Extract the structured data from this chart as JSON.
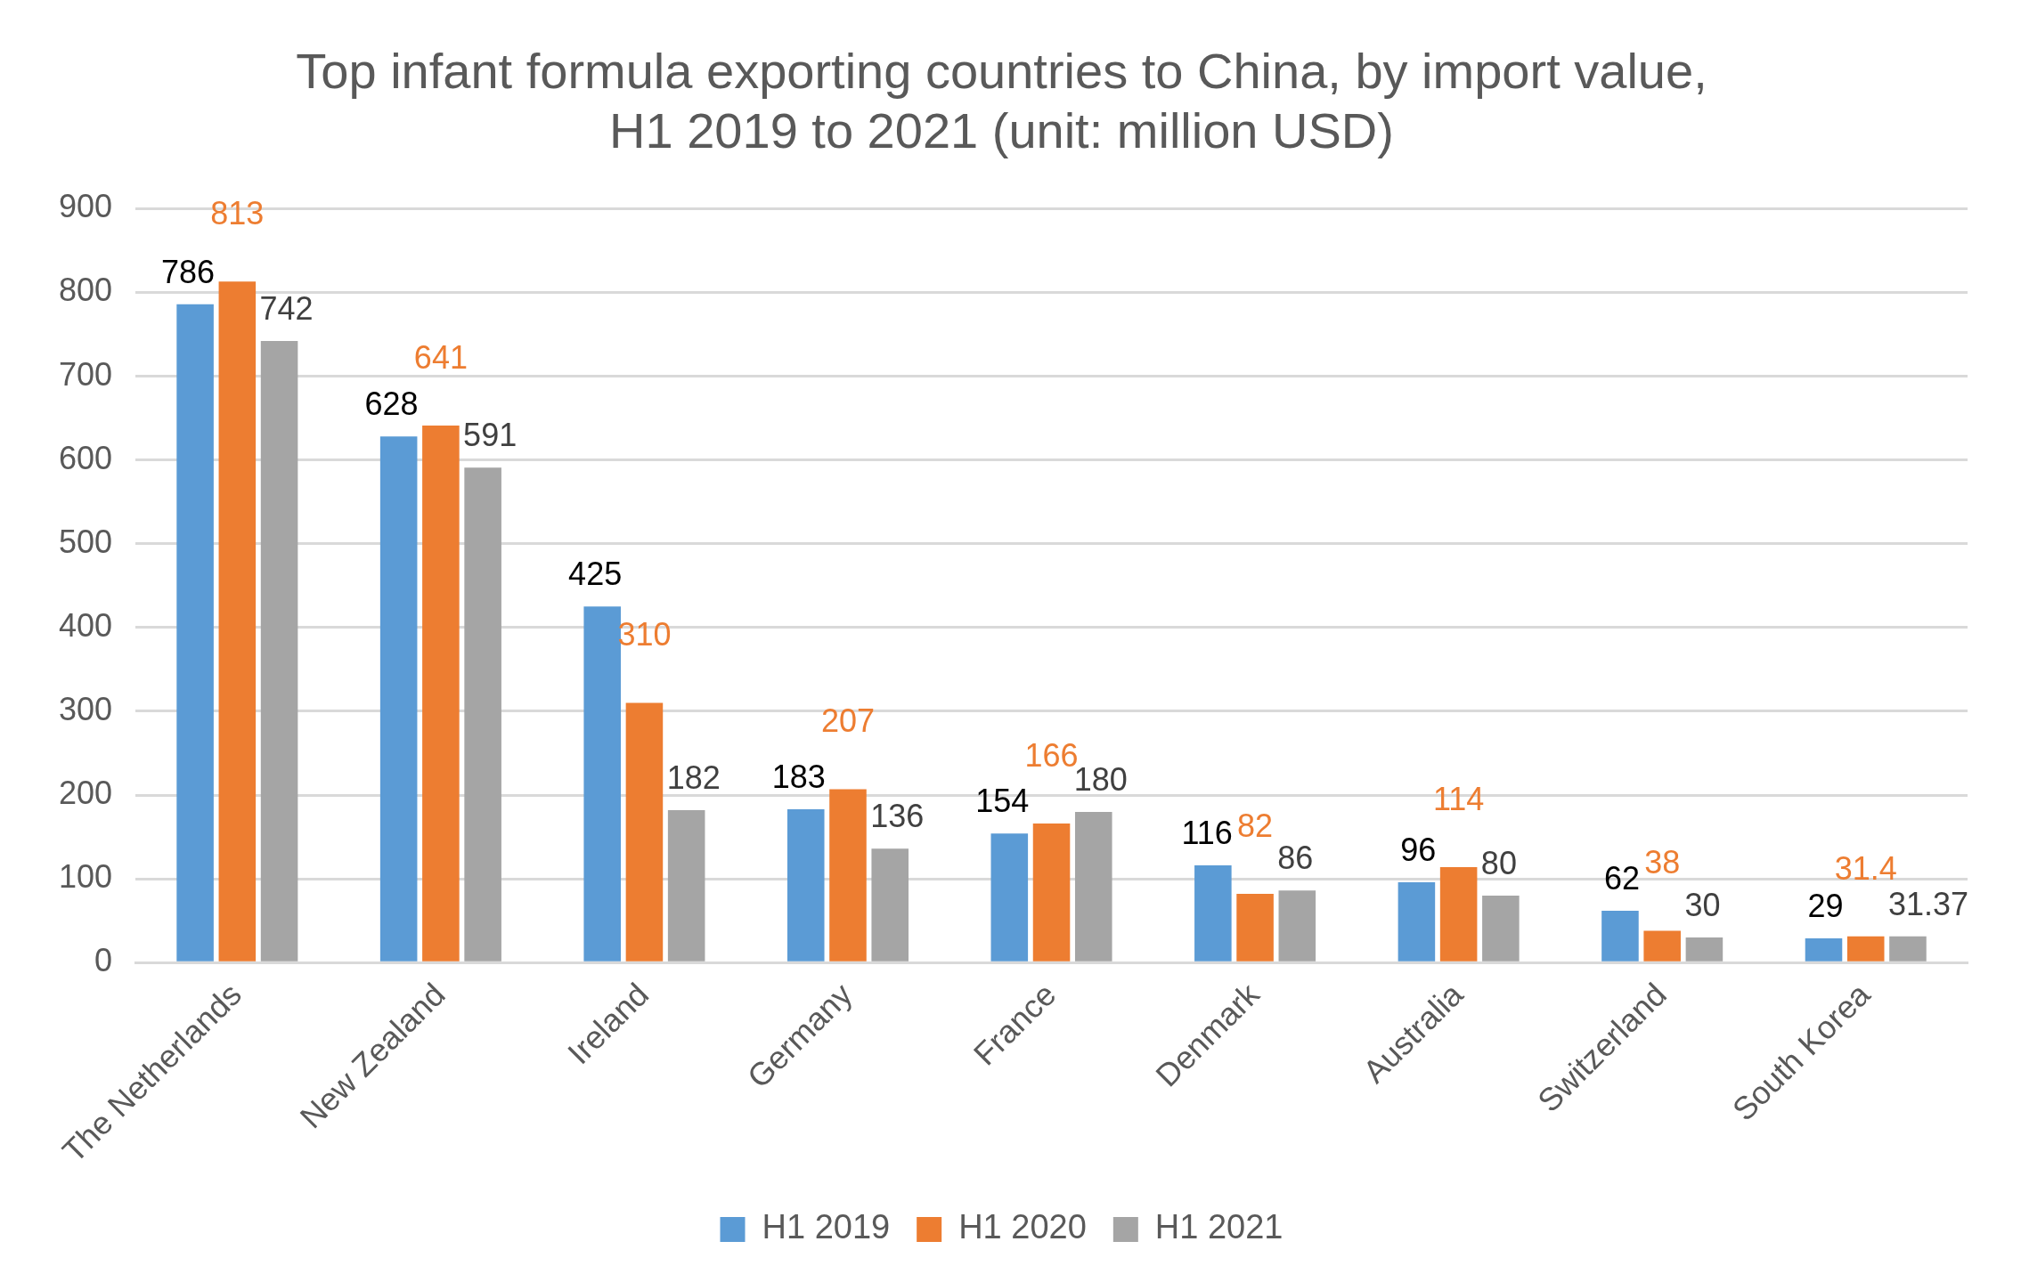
{
  "chart_data": {
    "type": "bar",
    "title": "Top infant formula exporting countries to China, by import value, H1 2019 to 2021 (unit: million USD)",
    "categories": [
      "The Netherlands",
      "New Zealand",
      "Ireland",
      "Germany",
      "France",
      "Denmark",
      "Australia",
      "Switzerland",
      "South Korea"
    ],
    "series": [
      {
        "name": "H1 2019",
        "color": "#5b9bd5",
        "values": [
          786,
          628,
          425,
          183,
          154,
          116,
          96,
          62,
          29
        ]
      },
      {
        "name": "H1 2020",
        "color": "#ed7d31",
        "values": [
          813,
          641,
          310,
          207,
          166,
          82,
          114,
          38,
          31.4
        ]
      },
      {
        "name": "H1 2021",
        "color": "#a5a5a5",
        "values": [
          742,
          591,
          182,
          136,
          180,
          86,
          80,
          30,
          31.37
        ]
      }
    ],
    "ylim": [
      0,
      900
    ],
    "yticks": [
      0,
      100,
      200,
      300,
      400,
      500,
      600,
      700,
      800,
      900
    ],
    "grid": "y",
    "legend": "bottom",
    "data_labels": true
  }
}
